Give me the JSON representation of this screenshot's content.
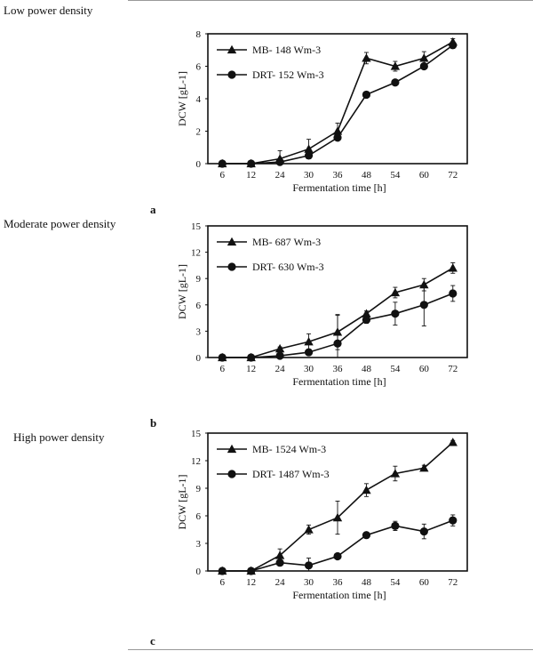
{
  "panels": [
    {
      "row_title": "Low power density",
      "letter": "a"
    },
    {
      "row_title": "Moderate  power density",
      "letter": "b"
    },
    {
      "row_title": "High power density",
      "letter": "c"
    }
  ],
  "chart_data": [
    {
      "type": "line",
      "categories": [
        "6",
        "12",
        "24",
        "30",
        "36",
        "48",
        "54",
        "60",
        "72"
      ],
      "xlabel": "Fermentation time [h]",
      "ylabel": "DCW [gL-1]",
      "ylim": [
        0,
        8
      ],
      "yticks": [
        0,
        2,
        4,
        6,
        8
      ],
      "grid": false,
      "legend": "top-left",
      "series": [
        {
          "name": "MB- 148 Wm-3",
          "marker": "triangle",
          "values": [
            0,
            0,
            0.3,
            0.9,
            2.0,
            6.5,
            6.0,
            6.5,
            7.5
          ],
          "errors": [
            0,
            0,
            0.5,
            0.6,
            0.5,
            0.35,
            0.3,
            0.4,
            0.2
          ]
        },
        {
          "name": "DRT- 152 Wm-3",
          "marker": "circle",
          "values": [
            0,
            0,
            0.1,
            0.5,
            1.6,
            4.25,
            5.0,
            6.0,
            7.3
          ],
          "errors": [
            0,
            0,
            0.1,
            0.1,
            0.1,
            0.1,
            0.1,
            0.1,
            0.2
          ]
        }
      ]
    },
    {
      "type": "line",
      "categories": [
        "6",
        "12",
        "24",
        "30",
        "36",
        "48",
        "54",
        "60",
        "72"
      ],
      "xlabel": "Fermentation time [h]",
      "ylabel": "DCW [gL-1]",
      "ylim": [
        0,
        15
      ],
      "yticks": [
        0,
        3,
        6,
        9,
        12,
        15
      ],
      "grid": false,
      "legend": "top-left",
      "series": [
        {
          "name": "MB- 687 Wm-3",
          "marker": "triangle",
          "values": [
            0,
            0,
            1.0,
            1.8,
            2.9,
            5.0,
            7.4,
            8.3,
            10.2
          ],
          "errors": [
            0,
            0,
            0.2,
            0.9,
            2.0,
            0.3,
            0.6,
            0.7,
            0.6
          ]
        },
        {
          "name": "DRT- 630 Wm-3",
          "marker": "circle",
          "values": [
            0,
            0,
            0.2,
            0.6,
            1.6,
            4.3,
            5.0,
            6.0,
            7.3
          ],
          "errors": [
            0,
            0,
            0.1,
            0.1,
            3.2,
            0.4,
            1.3,
            2.4,
            0.9
          ]
        }
      ]
    },
    {
      "type": "line",
      "categories": [
        "6",
        "12",
        "24",
        "30",
        "36",
        "48",
        "54",
        "60",
        "72"
      ],
      "xlabel": "Fermentation time [h]",
      "ylabel": "DCW [gL-1]",
      "ylim": [
        0,
        15
      ],
      "yticks": [
        0,
        3,
        6,
        9,
        12,
        15
      ],
      "grid": false,
      "legend": "top-left",
      "series": [
        {
          "name": "MB- 1524 Wm-3",
          "marker": "triangle",
          "values": [
            0,
            0,
            1.7,
            4.5,
            5.8,
            8.8,
            10.6,
            11.2,
            14.0
          ],
          "errors": [
            0,
            0,
            0.7,
            0.5,
            1.8,
            0.7,
            0.8,
            0.3,
            0.2
          ]
        },
        {
          "name": "DRT- 1487 Wm-3",
          "marker": "circle",
          "values": [
            0,
            0,
            0.9,
            0.6,
            1.6,
            3.9,
            4.9,
            4.3,
            5.5
          ],
          "errors": [
            0,
            0,
            0.2,
            0.8,
            0.2,
            0.2,
            0.5,
            0.8,
            0.6
          ]
        }
      ]
    }
  ]
}
